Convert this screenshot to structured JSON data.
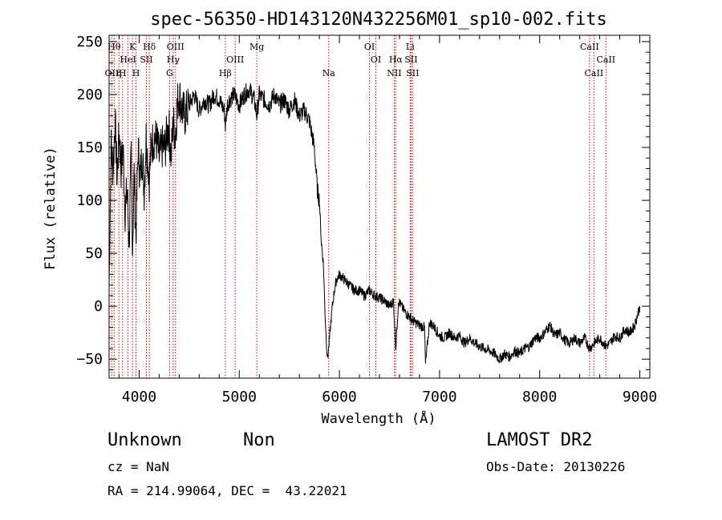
{
  "chart_data": {
    "type": "line",
    "title": "spec-56350-HD143120N432256M01_sp10-002.fits",
    "xlabel": "Wavelength (Å)",
    "ylabel": "Flux (relative)",
    "xlim": [
      3700,
      9100
    ],
    "ylim": [
      -68,
      256
    ],
    "xticks": [
      4000,
      5000,
      6000,
      7000,
      8000,
      9000
    ],
    "yticks": [
      -50,
      0,
      50,
      100,
      150,
      200,
      250
    ],
    "grid": false,
    "line_color": "#000000",
    "marker_color": "#cc0000",
    "series": [
      {
        "x": [
          3700,
          3720,
          3740,
          3760,
          3780,
          3800,
          3820,
          3840,
          3860,
          3880,
          3900,
          3920,
          3934,
          3950,
          3968,
          3990,
          4010,
          4030,
          4050,
          4070,
          4101,
          4120,
          4150,
          4180,
          4200,
          4230,
          4260,
          4290,
          4300,
          4320,
          4340,
          4360,
          4380,
          4400,
          4430,
          4460,
          4500,
          4550,
          4600,
          4650,
          4700,
          4750,
          4800,
          4850,
          4861,
          4880,
          4900,
          4950,
          5000,
          5050,
          5100,
          5150,
          5175,
          5200,
          5250,
          5300,
          5350,
          5400,
          5450,
          5500,
          5550,
          5600,
          5650,
          5700,
          5750,
          5780,
          5800,
          5820,
          5840,
          5860,
          5880,
          5893,
          5910,
          5930,
          5950,
          5970,
          6000,
          6050,
          6100,
          6150,
          6200,
          6250,
          6300,
          6350,
          6400,
          6450,
          6500,
          6540,
          6563,
          6590,
          6620,
          6650,
          6700,
          6750,
          6800,
          6850,
          6860,
          6900,
          6950,
          7000,
          7050,
          7100,
          7150,
          7200,
          7250,
          7300,
          7350,
          7400,
          7450,
          7500,
          7550,
          7600,
          7650,
          7700,
          7750,
          7800,
          7850,
          7900,
          7950,
          8000,
          8050,
          8100,
          8150,
          8200,
          8250,
          8300,
          8350,
          8400,
          8450,
          8500,
          8542,
          8600,
          8662,
          8700,
          8750,
          8800,
          8850,
          8900,
          8950,
          9000
        ],
        "y": [
          20,
          150,
          130,
          175,
          120,
          165,
          130,
          150,
          90,
          110,
          60,
          140,
          55,
          125,
          65,
          150,
          120,
          145,
          110,
          160,
          120,
          150,
          160,
          155,
          140,
          150,
          150,
          170,
          165,
          140,
          175,
          160,
          190,
          200,
          185,
          180,
          190,
          200,
          185,
          195,
          190,
          200,
          195,
          185,
          170,
          190,
          195,
          200,
          190,
          200,
          205,
          195,
          180,
          200,
          195,
          190,
          200,
          190,
          195,
          185,
          195,
          180,
          185,
          175,
          150,
          110,
          100,
          60,
          40,
          -15,
          -50,
          -40,
          -20,
          0,
          15,
          25,
          30,
          25,
          20,
          15,
          15,
          10,
          15,
          10,
          8,
          5,
          0,
          5,
          -40,
          5,
          0,
          -5,
          -10,
          -15,
          -18,
          -20,
          -55,
          -15,
          -20,
          -28,
          -30,
          -25,
          -30,
          -28,
          -35,
          -30,
          -35,
          -38,
          -40,
          -42,
          -45,
          -50,
          -45,
          -48,
          -42,
          -45,
          -40,
          -38,
          -30,
          -30,
          -25,
          -18,
          -28,
          -25,
          -32,
          -35,
          -30,
          -35,
          -30,
          -40,
          -35,
          -30,
          -38,
          -35,
          -28,
          -30,
          -22,
          -25,
          -18,
          0
        ]
      }
    ],
    "line_markers": [
      {
        "x": 3727,
        "label": "OII",
        "row": 3
      },
      {
        "x": 3750,
        "label": "Hθ",
        "row": 1
      },
      {
        "x": 3798,
        "label": "η",
        "row": 3
      },
      {
        "x": 3835,
        "label": "H",
        "row": 3
      },
      {
        "x": 3889,
        "label": "HeI",
        "row": 2
      },
      {
        "x": 3934,
        "label": "K",
        "row": 1
      },
      {
        "x": 3969,
        "label": "H",
        "row": 3
      },
      {
        "x": 4072,
        "label": "SII",
        "row": 2
      },
      {
        "x": 4102,
        "label": "Hδ",
        "row": 1
      },
      {
        "x": 4304,
        "label": "G",
        "row": 3
      },
      {
        "x": 4340,
        "label": "Hγ",
        "row": 2
      },
      {
        "x": 4363,
        "label": "OIII",
        "row": 1
      },
      {
        "x": 4861,
        "label": "Hβ",
        "row": 3
      },
      {
        "x": 4959,
        "label": "OIII",
        "row": 2
      },
      {
        "x": 5175,
        "label": "Mg",
        "row": 1
      },
      {
        "x": 5893,
        "label": "Na",
        "row": 3
      },
      {
        "x": 6300,
        "label": "OI",
        "row": 1
      },
      {
        "x": 6364,
        "label": "OI",
        "row": 2
      },
      {
        "x": 6548,
        "label": "NII",
        "row": 3
      },
      {
        "x": 6563,
        "label": "Hα",
        "row": 2
      },
      {
        "x": 6707,
        "label": "Li",
        "row": 1
      },
      {
        "x": 6716,
        "label": "SII",
        "row": 2
      },
      {
        "x": 6731,
        "label": "SII",
        "row": 3
      },
      {
        "x": 8498,
        "label": "CaII",
        "row": 1
      },
      {
        "x": 8542,
        "label": "CaII",
        "row": 3
      },
      {
        "x": 8662,
        "label": "CaII",
        "row": 2
      }
    ]
  },
  "info": {
    "class": "Unknown",
    "subclass": "Non",
    "survey": "LAMOST DR2",
    "cz": "cz = NaN",
    "obs_date": "Obs-Date: 20130226",
    "coords": "RA = 214.99064, DEC =  43.22021"
  }
}
